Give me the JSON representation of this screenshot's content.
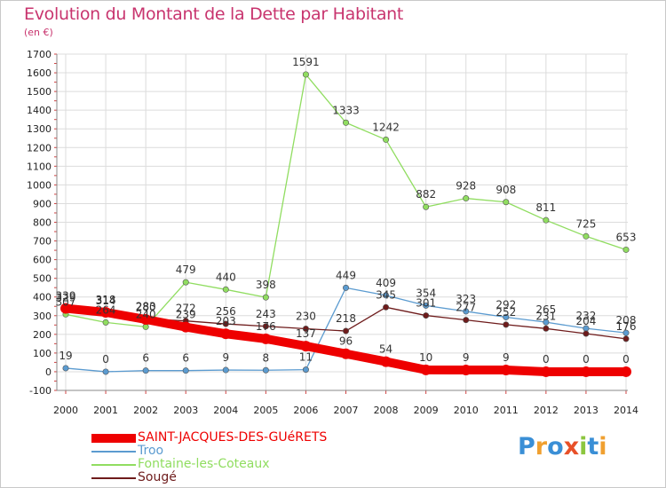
{
  "chart_data": {
    "type": "line",
    "title": "Evolution du Montant de la Dette par Habitant",
    "subtitle": "(en €)",
    "x": [
      2000,
      2001,
      2002,
      2003,
      2004,
      2005,
      2006,
      2007,
      2008,
      2009,
      2010,
      2011,
      2012,
      2013,
      2014
    ],
    "ylim": [
      -100,
      1700
    ],
    "yticks": [
      -100,
      0,
      100,
      200,
      300,
      400,
      500,
      600,
      700,
      800,
      900,
      1000,
      1100,
      1200,
      1300,
      1400,
      1500,
      1600,
      1700
    ],
    "grid": true,
    "legend_position": "bottom-left",
    "series": [
      {
        "name": "SAINT-JACQUES-DES-GUéRETS",
        "color": "#ee0000",
        "values": [
          339,
          318,
          280,
          239,
          203,
          176,
          137,
          96,
          54,
          10,
          9,
          9,
          0,
          0,
          0
        ]
      },
      {
        "name": "Troo",
        "color": "#5b9bd0",
        "values": [
          19,
          0,
          6,
          6,
          9,
          8,
          11,
          449,
          409,
          354,
          323,
          292,
          265,
          232,
          208
        ]
      },
      {
        "name": "Fontaine-les-Coteaux",
        "color": "#90dd60",
        "values": [
          307,
          264,
          240,
          479,
          440,
          398,
          1591,
          1333,
          1242,
          882,
          928,
          908,
          811,
          725,
          653
        ]
      },
      {
        "name": "Sougé",
        "color": "#6e1b1b",
        "values": [
          329,
          314,
          283,
          272,
          256,
          243,
          230,
          218,
          345,
          301,
          277,
          252,
          231,
          204,
          176
        ]
      }
    ],
    "data_labels": [
      {
        "series": 0,
        "labels": [
          "339",
          "318",
          "280",
          "239",
          "203",
          "176",
          "137",
          "96",
          "54",
          "10",
          "9",
          "9",
          "0",
          "0",
          "0"
        ]
      },
      {
        "series": 1,
        "labels": [
          "19",
          "0",
          "6",
          "6",
          "9",
          "8",
          "11",
          "449",
          "409",
          "354",
          "323",
          "292",
          "265",
          "232",
          "208"
        ]
      },
      {
        "series": 2,
        "labels": [
          "307",
          "264",
          "240",
          "479",
          "440",
          "398",
          "1591",
          "1333",
          "1242",
          "882",
          "928",
          "908",
          "811",
          "725",
          "653"
        ]
      },
      {
        "series": 3,
        "labels": [
          "329",
          "314",
          "283",
          "272",
          "256",
          "243",
          "230",
          "218",
          "345",
          "301",
          "277",
          "252",
          "231",
          "204",
          "176"
        ]
      }
    ]
  },
  "logo": {
    "letters": [
      {
        "ch": "P",
        "color": "#3a8fd6"
      },
      {
        "ch": "r",
        "color": "#f0a030"
      },
      {
        "ch": "o",
        "color": "#3a8fd6"
      },
      {
        "ch": "x",
        "color": "#e85028"
      },
      {
        "ch": "i",
        "color": "#8cc63f"
      },
      {
        "ch": "t",
        "color": "#3a8fd6"
      },
      {
        "ch": "i",
        "color": "#f0a030"
      }
    ]
  }
}
